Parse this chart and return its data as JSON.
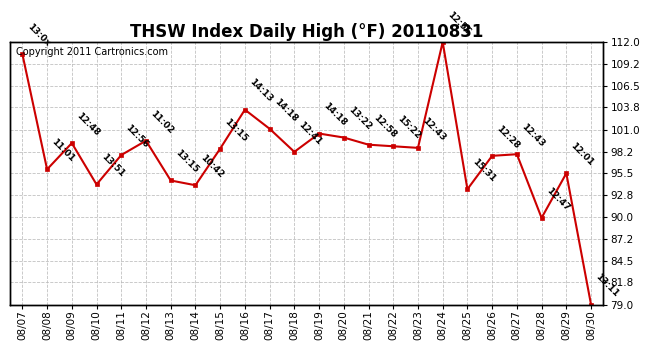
{
  "title": "THSW Index Daily High (°F) 20110831",
  "copyright": "Copyright 2011 Cartronics.com",
  "dates": [
    "08/07",
    "08/08",
    "08/09",
    "08/10",
    "08/11",
    "08/12",
    "08/13",
    "08/14",
    "08/15",
    "08/16",
    "08/17",
    "08/18",
    "08/19",
    "08/20",
    "08/21",
    "08/22",
    "08/23",
    "08/24",
    "08/25",
    "08/26",
    "08/27",
    "08/28",
    "08/29",
    "08/30"
  ],
  "values": [
    110.5,
    96.0,
    99.3,
    94.1,
    97.8,
    99.6,
    94.6,
    94.0,
    98.6,
    103.5,
    101.1,
    98.2,
    100.5,
    100.0,
    99.1,
    98.9,
    98.7,
    112.0,
    93.5,
    97.7,
    97.9,
    89.9,
    95.5,
    79.0
  ],
  "times_display": [
    "13:0x",
    "11:01",
    "12:48",
    "13:51",
    "12:56",
    "11:02",
    "13:15",
    "10:42",
    "13:15",
    "14:13",
    "14:18",
    "12:41",
    "14:18",
    "13:22",
    "12:58",
    "15:22",
    "12:43",
    "12:56",
    "15:31",
    "12:28",
    "12:43",
    "12:47",
    "12:01",
    "13:11"
  ],
  "ylim": [
    79.0,
    112.0
  ],
  "yticks": [
    79.0,
    81.8,
    84.5,
    87.2,
    90.0,
    92.8,
    95.5,
    98.2,
    101.0,
    103.8,
    106.5,
    109.2,
    112.0
  ],
  "line_color": "#cc0000",
  "marker_color": "#cc0000",
  "bg_color": "#ffffff",
  "grid_color": "#bbbbbb",
  "title_fontsize": 12,
  "annot_fontsize": 6.5,
  "copyright_fontsize": 7.0,
  "tick_fontsize": 7.5
}
